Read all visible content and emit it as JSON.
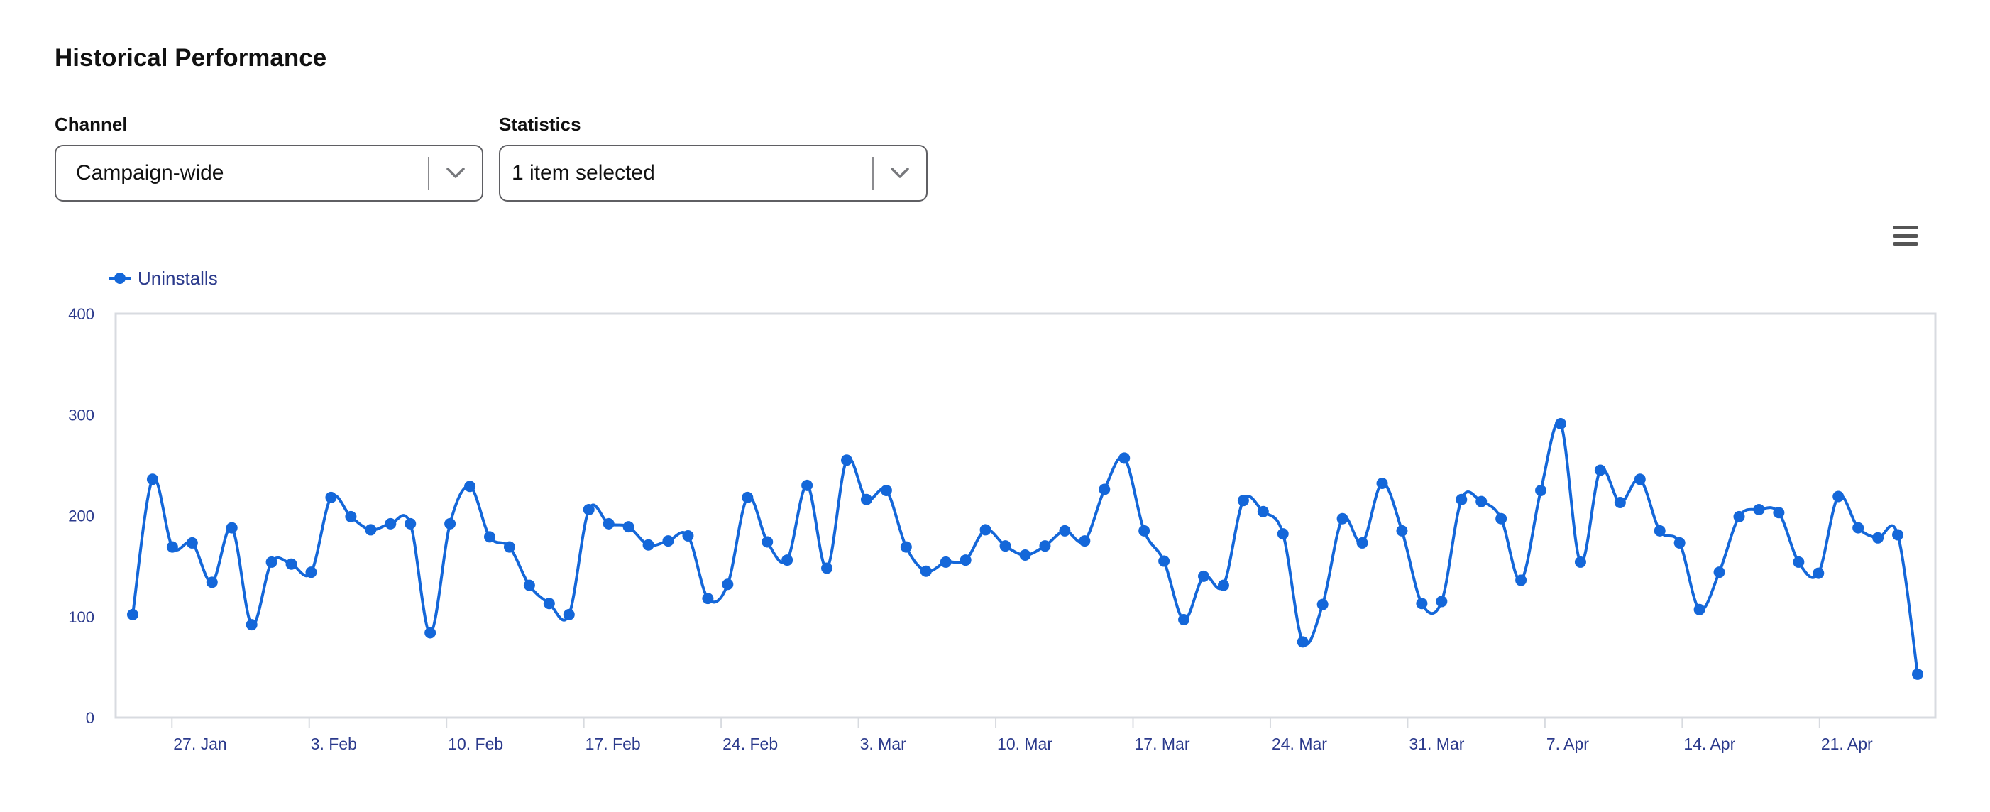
{
  "page": {
    "title": "Historical Performance"
  },
  "filters": {
    "channel": {
      "label": "Channel",
      "value": "Campaign-wide"
    },
    "statistics": {
      "label": "Statistics",
      "value": "1 item selected"
    }
  },
  "icons": {
    "menu": "hamburger-menu-icon",
    "caret": "chevron-down-icon"
  },
  "colors": {
    "series": "#1467d9",
    "axis_text": "#2b3a8c",
    "frame": "#d8dbe0"
  },
  "chart_data": {
    "type": "line",
    "title": "",
    "xlabel": "",
    "ylabel": "",
    "ylim": [
      0,
      400
    ],
    "yticks": [
      0,
      100,
      200,
      300,
      400
    ],
    "x_tick_labels": [
      "27. Jan",
      "3. Feb",
      "10. Feb",
      "17. Feb",
      "24. Feb",
      "3. Mar",
      "10. Mar",
      "17. Mar",
      "24. Mar",
      "31. Mar",
      "7. Apr",
      "14. Apr",
      "21. Apr"
    ],
    "x_start": "2025-01-25",
    "x_end": "2025-04-26",
    "legend": {
      "position": "top-left",
      "entries": [
        "Uninstalls"
      ]
    },
    "series": [
      {
        "name": "Uninstalls",
        "values": [
          102,
          236,
          169,
          173,
          134,
          188,
          92,
          154,
          152,
          144,
          218,
          199,
          186,
          192,
          192,
          84,
          192,
          229,
          179,
          169,
          131,
          113,
          102,
          206,
          192,
          189,
          171,
          175,
          180,
          118,
          132,
          218,
          174,
          156,
          230,
          148,
          255,
          216,
          225,
          169,
          145,
          154,
          156,
          186,
          170,
          161,
          170,
          185,
          175,
          226,
          257,
          185,
          155,
          97,
          140,
          131,
          215,
          204,
          182,
          75,
          112,
          197,
          173,
          232,
          185,
          113,
          115,
          216,
          214,
          197,
          136,
          225,
          291,
          154,
          245,
          213,
          236,
          185,
          173,
          107,
          144,
          199,
          206,
          203,
          154,
          143,
          219,
          188,
          178,
          181,
          43
        ]
      }
    ]
  }
}
